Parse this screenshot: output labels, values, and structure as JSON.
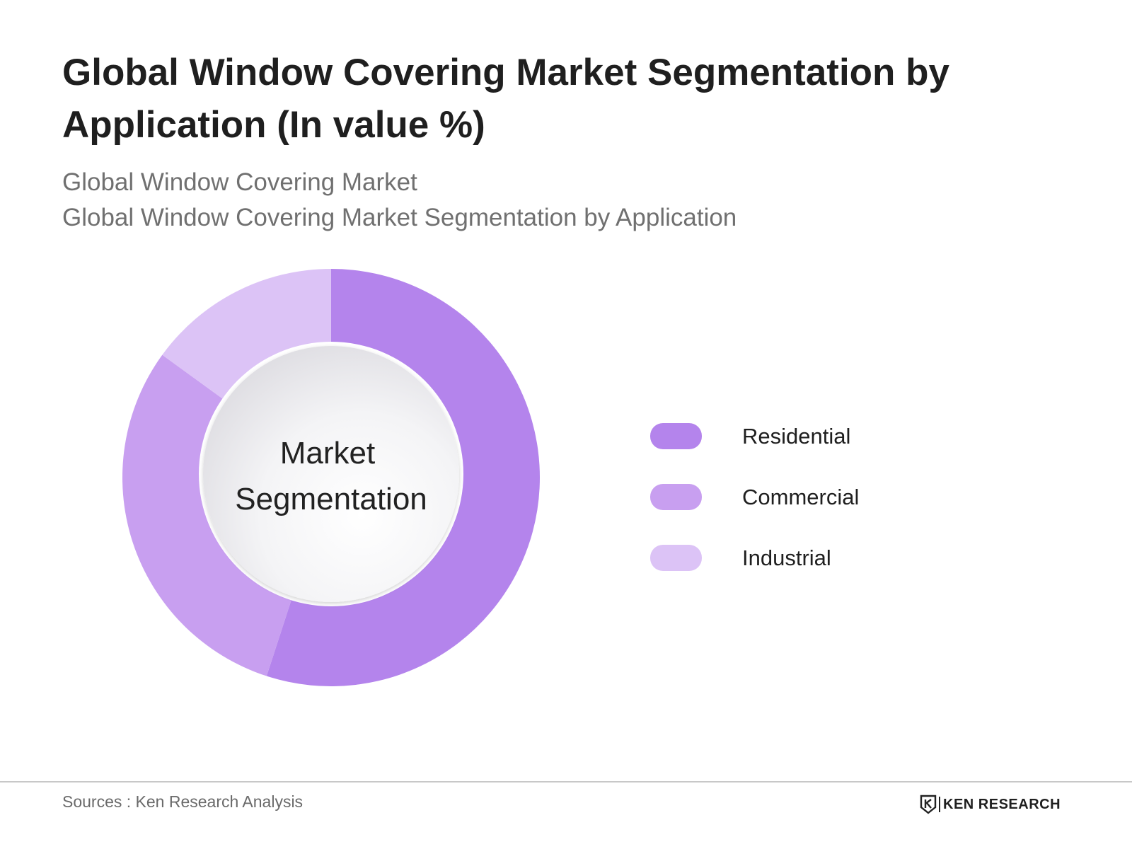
{
  "title": "Global Window Covering Market Segmentation by Application (In value %)",
  "subtitle_1": "Global Window Covering Market",
  "subtitle_2": "Global Window Covering Market Segmentation by Application",
  "center_label_line1": "Market",
  "center_label_line2": "Segmentation",
  "footer": {
    "source": "Sources : Ken Research Analysis",
    "brand": "KEN RESEARCH"
  },
  "chart_data": {
    "type": "pie",
    "variant": "donut",
    "categories": [
      "Residential",
      "Commercial",
      "Industrial"
    ],
    "values": [
      55,
      30,
      15
    ],
    "colors": [
      "#b484ec",
      "#c89ff0",
      "#dcc3f6"
    ],
    "legend_position": "right",
    "start_angle": "12 o'clock, clockwise"
  }
}
